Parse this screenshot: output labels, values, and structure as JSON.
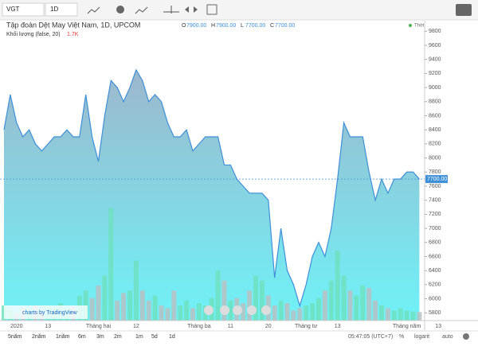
{
  "toolbar": {
    "symbol": "VGT",
    "interval": "1D"
  },
  "footer": {
    "ranges": [
      "5năm",
      "2năm",
      "1năm",
      "6m",
      "3m",
      "2m",
      "1m",
      "5d",
      "1d"
    ],
    "time": "05:47:05 (UTC+7)",
    "percent": "%",
    "log": "logarit",
    "auto": "auto"
  },
  "realtime": "Thời gian thực",
  "branding": "charts by TradingView",
  "chart_data": {
    "type": "area",
    "title": "Tập đoàn Dệt May Việt Nam, 1D, UPCOM",
    "ohlc": [
      {
        "label": "O",
        "value": "7900.00"
      },
      {
        "label": "H",
        "value": "7900.00"
      },
      {
        "label": "L",
        "value": "7700.00"
      },
      {
        "label": "C",
        "value": "7700.00"
      }
    ],
    "last_price": {
      "value": 7700,
      "label": "7700.00"
    },
    "categories": [
      null,
      null,
      "2020",
      null,
      null,
      null,
      null,
      "13",
      null,
      null,
      null,
      null,
      null,
      null,
      null,
      "Tháng hai",
      null,
      null,
      null,
      null,
      null,
      "12",
      null,
      null,
      null,
      null,
      null,
      null,
      null,
      null,
      null,
      "Tháng ba",
      null,
      null,
      null,
      null,
      "11",
      null,
      null,
      null,
      null,
      null,
      "20",
      null,
      null,
      null,
      null,
      null,
      "Tháng tư",
      null,
      null,
      null,
      null,
      "13",
      null,
      null,
      null,
      null,
      null,
      null,
      null,
      null,
      null,
      null,
      "Tháng năm",
      null,
      null,
      null,
      null,
      "13",
      null
    ],
    "series": [
      {
        "name": "VGT",
        "color": "#3d8fd8",
        "fill_top": "#9db7cc",
        "fill_bottom": "#6ff2f8",
        "values": [
          8400,
          8900,
          8500,
          8300,
          8400,
          8200,
          8100,
          8200,
          8300,
          8300,
          8400,
          8300,
          8300,
          8900,
          8300,
          7950,
          8600,
          9100,
          9000,
          8800,
          9000,
          9250,
          9100,
          8800,
          8900,
          8800,
          8500,
          8300,
          8300,
          8400,
          8100,
          8200,
          8300,
          8300,
          8300,
          7900,
          7900,
          7700,
          7600,
          7500,
          7500,
          7500,
          7400,
          6300,
          7000,
          6400,
          6200,
          5900,
          6200,
          6600,
          6800,
          6600,
          7000,
          7700,
          8500,
          8300,
          8300,
          8300,
          7800,
          7400,
          7700,
          7500,
          7700,
          7700,
          7800,
          7800,
          7700,
          null,
          null,
          null,
          null
        ]
      },
      {
        "name": "Khối lượng (false, 20)",
        "axis": "y2",
        "color": "#6fe0c0",
        "down_color": "#b7c1c3",
        "values": [
          3000,
          2000,
          1500,
          2500,
          2000,
          3000,
          1800,
          2200,
          2500,
          3500,
          2000,
          2800,
          5000,
          6000,
          4500,
          7000,
          9000,
          22500,
          4000,
          5500,
          6000,
          12000,
          6000,
          4000,
          5000,
          3000,
          2500,
          6000,
          3000,
          4000,
          2500,
          3500,
          3000,
          4500,
          10000,
          8000,
          4000,
          4500,
          3500,
          6000,
          9000,
          8000,
          5000,
          3000,
          4000,
          3500,
          2000,
          2500,
          3000,
          3500,
          4500,
          6000,
          8000,
          14000,
          9000,
          6000,
          5000,
          7000,
          6500,
          4000,
          3000,
          2500,
          2000,
          2500,
          2000,
          1800,
          1700,
          null,
          null,
          null,
          null
        ],
        "value_labels": [
          null,
          null,
          null,
          null,
          null,
          null,
          null,
          null,
          null,
          null,
          null,
          null,
          null,
          null,
          null,
          null,
          null,
          null,
          null,
          null,
          null,
          null,
          null,
          null,
          null,
          null,
          null,
          null,
          null,
          null,
          null,
          null,
          null,
          null,
          null,
          null,
          null,
          null,
          null,
          null,
          null,
          null,
          null,
          null,
          null,
          null,
          null,
          null,
          null,
          null,
          null,
          null,
          null,
          null,
          null,
          null,
          null,
          null,
          null,
          null,
          null,
          null,
          null,
          null,
          null,
          null,
          "1.7K",
          null,
          null,
          null,
          null
        ]
      }
    ],
    "ylim": [
      5690,
      9950
    ],
    "yticks": [
      5800,
      6000,
      6200,
      6400,
      6600,
      6800,
      7000,
      7200,
      7400,
      7600,
      7800,
      8000,
      8200,
      8400,
      8600,
      8800,
      9000,
      9200,
      9400,
      9600,
      9800
    ],
    "y2lim": [
      0,
      60000
    ]
  }
}
